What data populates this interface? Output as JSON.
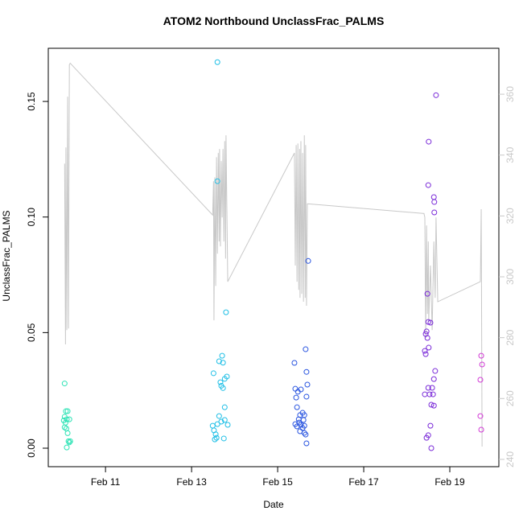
{
  "chart_data": {
    "type": "scatter",
    "title": "ATOM2 Northbound UnclassFrac_PALMS",
    "x_label": "Date",
    "y_label": "UnclassFrac_PALMS",
    "xlim": [
      9.67,
      20.14
    ],
    "ylim": [
      -0.008,
      0.173
    ],
    "y2lim": [
      237.6,
      375.1
    ],
    "xticks": [
      {
        "value": 11,
        "label": "Feb 11"
      },
      {
        "value": 13,
        "label": "Feb 13"
      },
      {
        "value": 15,
        "label": "Feb 15"
      },
      {
        "value": 17,
        "label": "Feb 17"
      },
      {
        "value": 19,
        "label": "Feb 19"
      }
    ],
    "yticks": [
      {
        "value": 0,
        "label": "0.00"
      },
      {
        "value": 0.05,
        "label": "0.05"
      },
      {
        "value": 0.1,
        "label": "0.10"
      },
      {
        "value": 0.15,
        "label": "0.15"
      }
    ],
    "y2ticks": [
      240,
      260,
      280,
      300,
      320,
      340,
      360
    ],
    "y2_color": "#c8c8c8",
    "series": [
      {
        "type": "line",
        "axis": "y2",
        "color": "#c8c8c8",
        "x": [
          10.05,
          10.07,
          10.08,
          10.1,
          10.12,
          10.14,
          10.16,
          10.18,
          13.49,
          13.51,
          13.52,
          13.54,
          13.56,
          13.58,
          13.6,
          13.62,
          13.64,
          13.65,
          13.67,
          13.69,
          13.71,
          13.73,
          13.75,
          13.77,
          13.79,
          13.8,
          13.84,
          15.39,
          15.41,
          15.43,
          15.45,
          15.47,
          15.49,
          15.51,
          15.52,
          15.54,
          15.56,
          15.58,
          15.6,
          15.62,
          15.64,
          15.65,
          15.67,
          15.69,
          18.4,
          18.42,
          18.44,
          18.46,
          18.48,
          18.5,
          18.51,
          18.55,
          18.59,
          18.63,
          18.66,
          18.68,
          18.72,
          19.71,
          19.73,
          19.75
        ],
        "values": [
          337.2,
          277.8,
          342.5,
          282.5,
          359.2,
          283,
          369.7,
          370.2,
          320.3,
          331.4,
          285.7,
          332.7,
          297,
          339.3,
          307.6,
          340.7,
          311.6,
          342,
          310,
          338,
          319.5,
          342,
          311.6,
          344.6,
          306,
          346.5,
          298.4,
          340.7,
          303.7,
          343.3,
          298.4,
          343.8,
          295.7,
          342,
          293.1,
          344.6,
          294.4,
          340.7,
          291.8,
          346.5,
          293.1,
          343.3,
          290.5,
          324,
          320.8,
          319.5,
          279.9,
          316.9,
          287.8,
          311.6,
          285.2,
          303.7,
          282.5,
          311.6,
          293.1,
          319.5,
          291.8,
          298.4,
          322.2,
          244.2
        ]
      },
      {
        "color": "#2de3b5",
        "x": [
          10.05,
          10.08,
          10.12,
          10.05,
          10.1,
          10.03,
          10.16,
          10.07,
          10.09,
          10.12,
          10.05,
          10.14,
          10.18,
          10.16,
          10.1
        ],
        "values": [
          0.028,
          0.016,
          0.016,
          0.0136,
          0.0125,
          0.012,
          0.0125,
          0.011,
          0.0085,
          0.0065,
          0.009,
          0.003,
          0.003,
          0.0025,
          0.0003
        ]
      },
      {
        "color": "#1fbfe6",
        "x": [
          13.6,
          13.6,
          13.8,
          13.71,
          13.64,
          13.73,
          13.51,
          13.82,
          13.77,
          13.67,
          13.69,
          13.73,
          13.77,
          13.64,
          13.49,
          13.6,
          13.69,
          13.77,
          13.84,
          13.52,
          13.56,
          13.58,
          13.54,
          13.75
        ],
        "values": [
          0.167,
          0.1155,
          0.0588,
          0.04,
          0.0376,
          0.037,
          0.0324,
          0.031,
          0.03,
          0.0285,
          0.027,
          0.026,
          0.0177,
          0.0139,
          0.0097,
          0.0104,
          0.0115,
          0.0122,
          0.0101,
          0.0077,
          0.006,
          0.0045,
          0.0038,
          0.0042
        ]
      },
      {
        "color": "#2a55e0",
        "x": [
          15.71,
          15.65,
          15.39,
          15.67,
          15.54,
          15.41,
          15.47,
          15.69,
          15.43,
          15.67,
          15.45,
          15.58,
          15.52,
          15.62,
          15.49,
          15.6,
          15.5,
          15.41,
          15.54,
          15.62,
          15.58,
          15.45,
          15.52,
          15.65,
          15.62,
          15.67
        ],
        "values": [
          0.081,
          0.0428,
          0.0369,
          0.033,
          0.0254,
          0.0257,
          0.0244,
          0.0275,
          0.0219,
          0.0223,
          0.0177,
          0.0153,
          0.0143,
          0.0143,
          0.0125,
          0.0122,
          0.0111,
          0.0104,
          0.0101,
          0.0097,
          0.0087,
          0.0094,
          0.0073,
          0.0059,
          0.0066,
          0.0021
        ]
      },
      {
        "color": "#7a2ad8",
        "x": [
          18.68,
          18.51,
          18.63,
          18.5,
          18.64,
          18.64,
          18.48,
          18.5,
          18.55,
          18.46,
          18.44,
          18.48,
          18.42,
          18.51,
          18.44,
          18.66,
          18.63,
          18.5,
          18.59,
          18.53,
          18.42,
          18.61,
          18.57,
          18.63,
          18.55,
          18.46,
          18.5,
          18.57
        ],
        "values": [
          0.1527,
          0.1326,
          0.1086,
          0.1138,
          0.1065,
          0.102,
          0.0668,
          0.0546,
          0.0543,
          0.0505,
          0.0494,
          0.0477,
          0.0421,
          0.0435,
          0.0407,
          0.0334,
          0.0299,
          0.0261,
          0.0261,
          0.0233,
          0.0233,
          0.0233,
          0.0188,
          0.0184,
          0.0097,
          0.0045,
          0.0056,
          0.0
        ]
      },
      {
        "color": "#d23ad6",
        "x": [
          19.73,
          19.75,
          19.71,
          19.71,
          19.73
        ],
        "values": [
          0.04,
          0.0362,
          0.0296,
          0.0139,
          0.008
        ]
      }
    ]
  }
}
